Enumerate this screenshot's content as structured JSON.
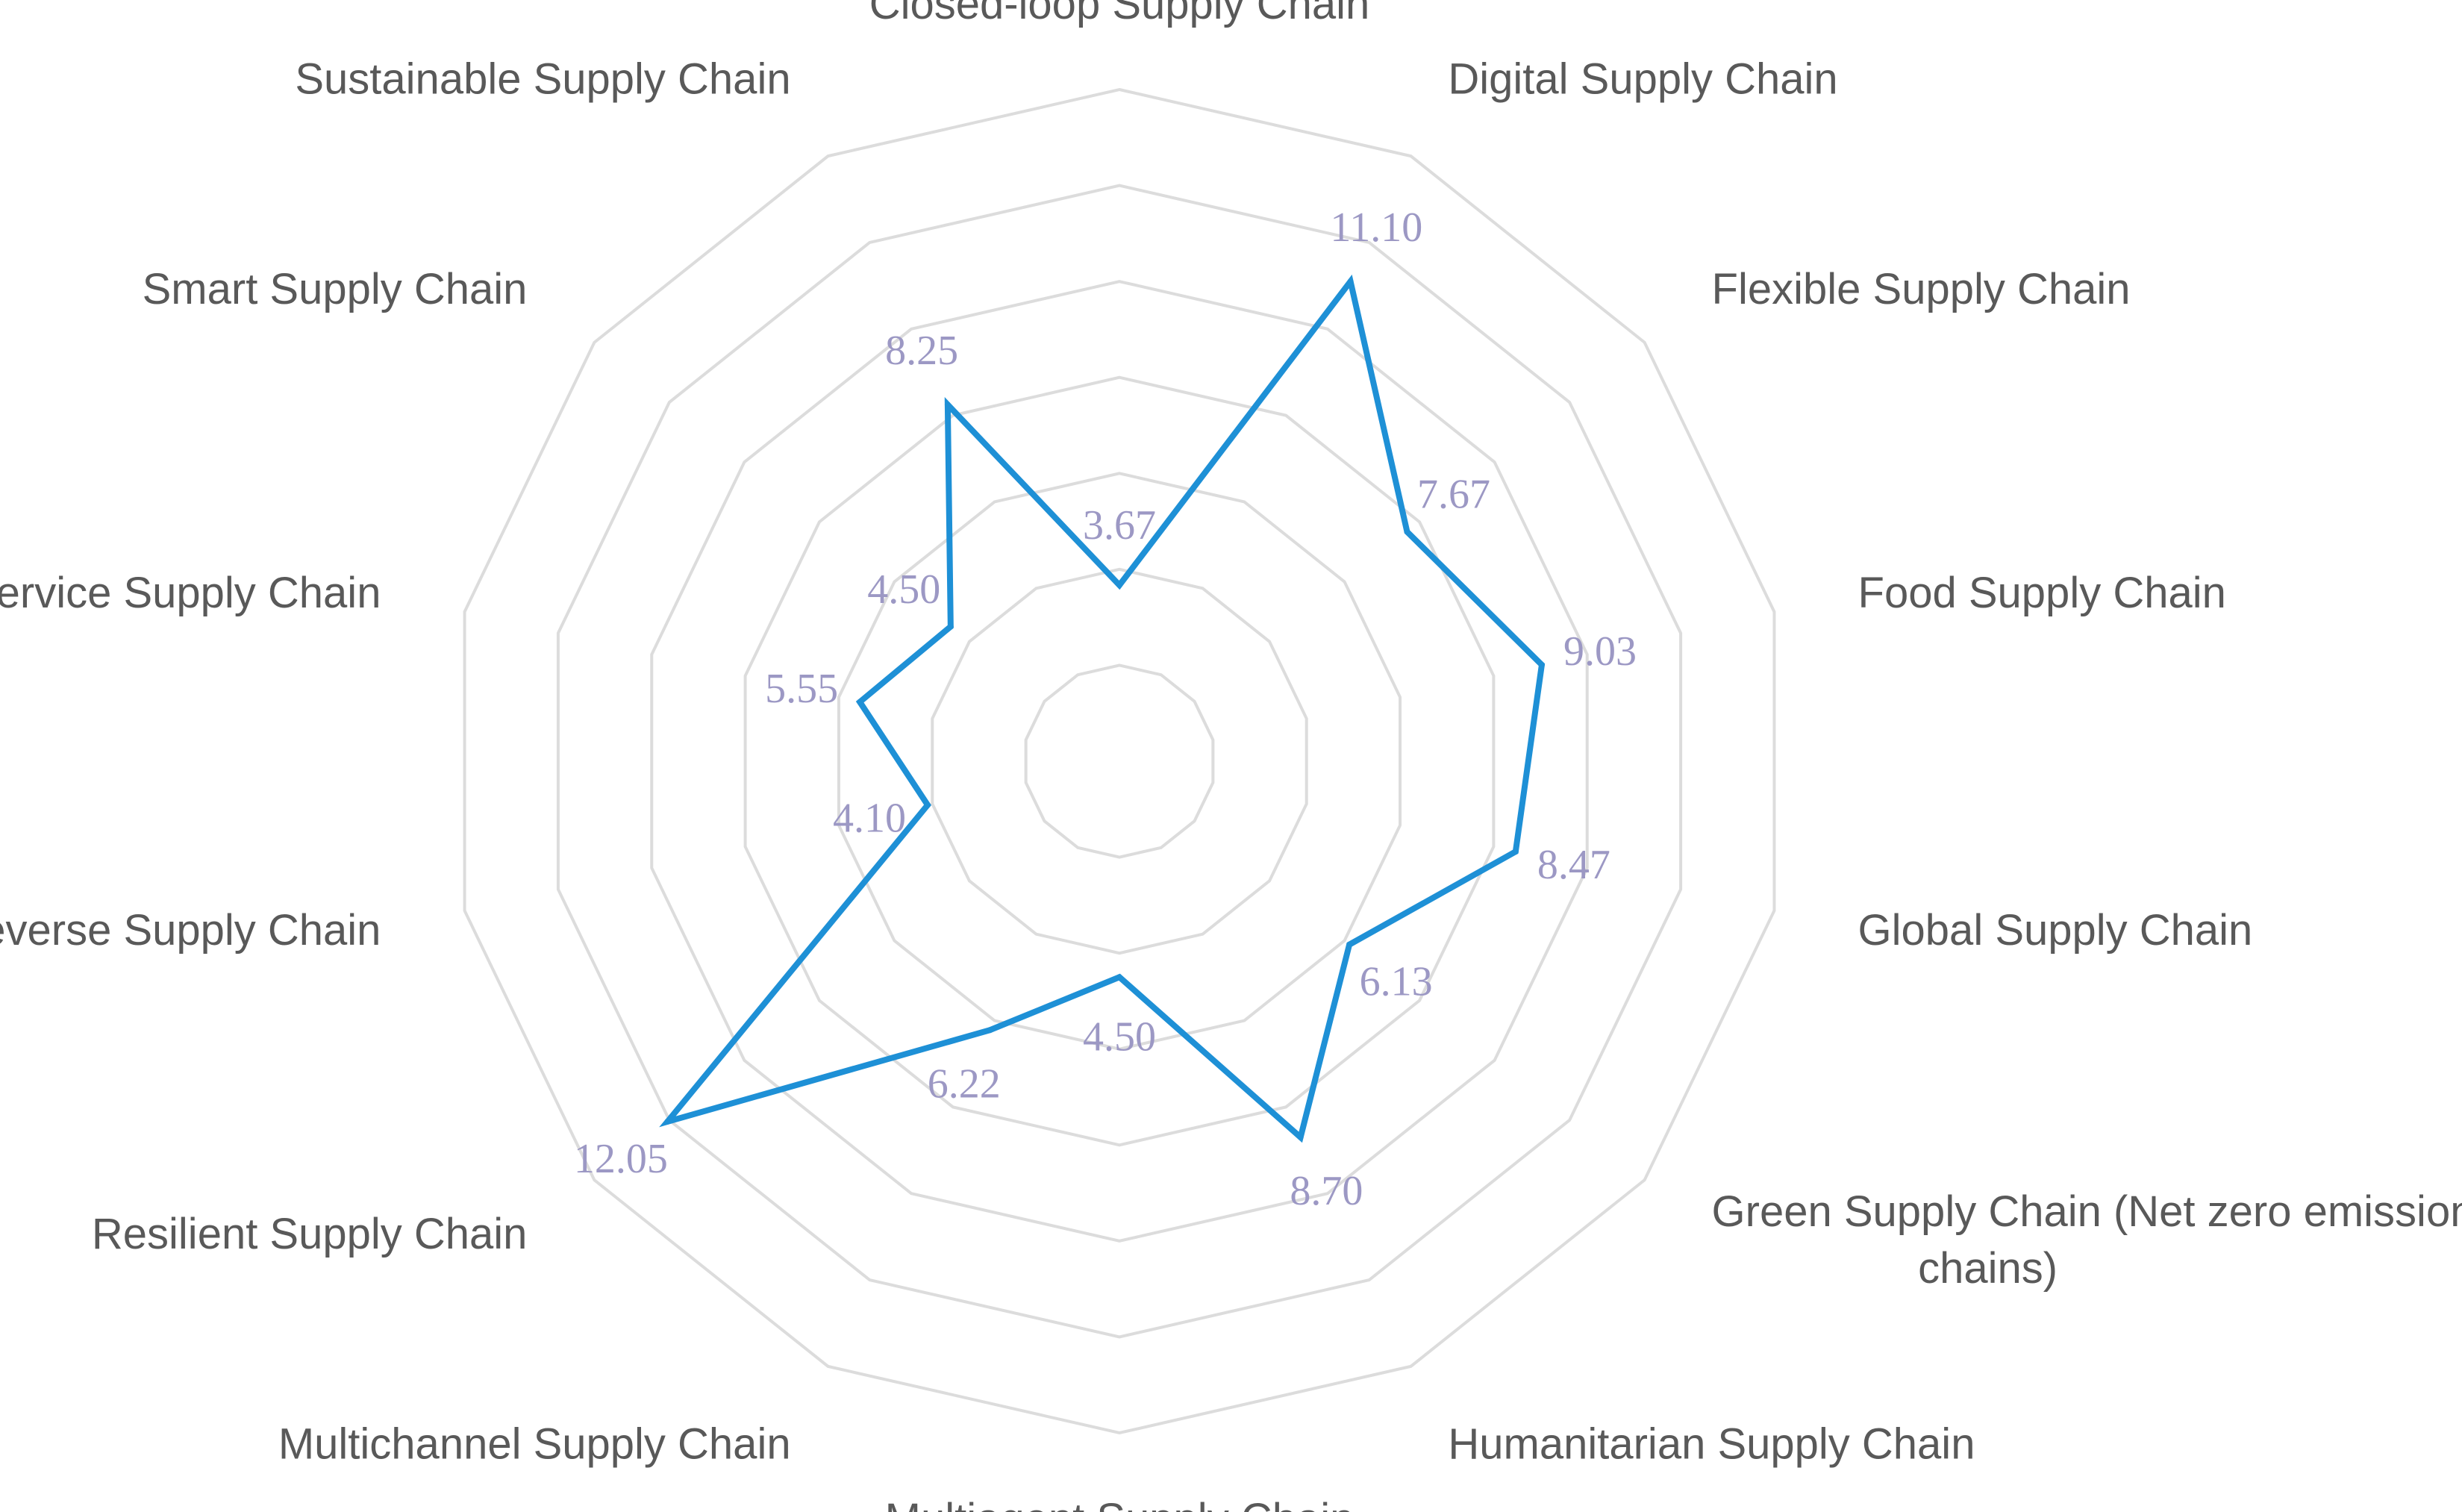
{
  "chart_data": {
    "type": "radar",
    "title": "",
    "categories": [
      "Closed-loop Supply Chain",
      "Digital Supply Chain",
      "Flexible Supply Chain",
      "Food Supply Chain",
      "Global Supply Chain",
      "Green Supply Chain (Net zero emission supply chains)",
      "Humanitarian Supply Chain",
      "Multiagent Supply Chain",
      "Multichannel Supply Chain",
      "Resilient Supply Chain",
      "Reverse Supply Chain",
      "Service Supply Chain",
      "Smart Supply Chain",
      "Sustainable Supply Chain"
    ],
    "values": [
      3.67,
      11.1,
      7.67,
      9.03,
      8.47,
      6.13,
      8.7,
      4.5,
      6.22,
      12.05,
      4.1,
      5.55,
      4.5,
      8.25
    ],
    "value_labels": [
      "3.67",
      "11.10",
      "7.67",
      "9.03",
      "8.47",
      "6.13",
      "8.70",
      "4.50",
      "6.22",
      "12.05",
      "4.10",
      "5.55",
      "4.50",
      "8.25"
    ],
    "rmin": 0,
    "rmax": 14,
    "grid_rings": 7,
    "gridlines": true,
    "legend": "none",
    "colors": {
      "series": "#1e90d6",
      "grid": "#dcdcdc",
      "axis_label": "#595959",
      "value_label": "#9c98c4"
    }
  }
}
